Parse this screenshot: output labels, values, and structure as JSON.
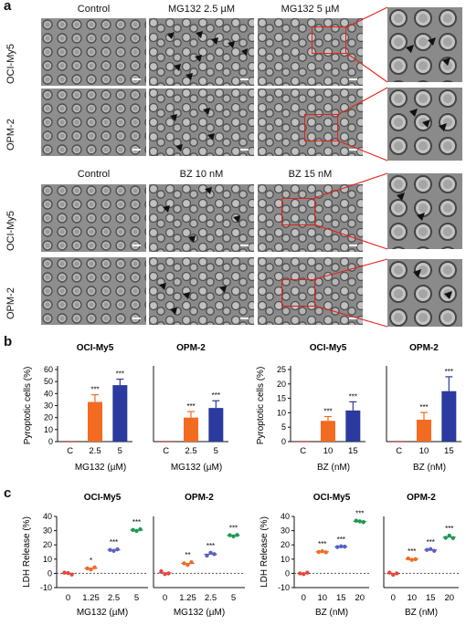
{
  "panel_labels": {
    "a": "a",
    "b": "b",
    "c": "c"
  },
  "panel_a": {
    "top_block": {
      "columns": [
        "Control",
        "MG132 2.5 µM",
        "MG132 5 µM"
      ],
      "rows": [
        "OCI-My5",
        "OPM-2"
      ]
    },
    "bottom_block": {
      "columns": [
        "Control",
        "BZ 10 nM",
        "BZ 15 nM"
      ],
      "rows": [
        "OCI-My5",
        "OPM-2"
      ]
    }
  },
  "colors": {
    "control": "#e8463c",
    "low": "#f26b21",
    "high": "#2b3a9e",
    "mid": "#5860c8",
    "top": "#1a9a4f",
    "zoom_box": "#e0231c"
  },
  "chart_data": [
    {
      "type": "bar",
      "panel": "b",
      "title": "OCI-My5",
      "ylabel": "Pyroptotic cells (%)",
      "xlabel": "MG132 (µM)",
      "categories": [
        "C",
        "2.5",
        "5"
      ],
      "values": [
        0,
        33,
        47
      ],
      "errors": [
        0,
        6,
        5
      ],
      "significance": [
        "",
        "***",
        "***"
      ],
      "ylim": [
        0,
        60
      ],
      "yticks": [
        0,
        10,
        20,
        30,
        40,
        50,
        60
      ]
    },
    {
      "type": "bar",
      "panel": "b",
      "title": "OPM-2",
      "ylabel": "",
      "xlabel": "MG132 (µM)",
      "categories": [
        "C",
        "2.5",
        "5"
      ],
      "values": [
        0,
        20,
        28
      ],
      "errors": [
        0,
        5,
        6
      ],
      "significance": [
        "",
        "***",
        "***"
      ],
      "ylim": [
        0,
        60
      ]
    },
    {
      "type": "bar",
      "panel": "b",
      "title": "OCI-My5",
      "ylabel": "Pyroptotic cells (%)",
      "xlabel": "BZ (nM)",
      "categories": [
        "C",
        "10",
        "15"
      ],
      "values": [
        0,
        7.2,
        10.8
      ],
      "errors": [
        0,
        1.5,
        3
      ],
      "significance": [
        "",
        "***",
        "***"
      ],
      "ylim": [
        0,
        25
      ],
      "yticks": [
        0,
        5,
        10,
        15,
        20,
        25
      ]
    },
    {
      "type": "bar",
      "panel": "b",
      "title": "OPM-2",
      "ylabel": "",
      "xlabel": "BZ (nM)",
      "categories": [
        "C",
        "10",
        "15"
      ],
      "values": [
        0,
        7.6,
        17.5
      ],
      "errors": [
        0,
        2.5,
        5
      ],
      "significance": [
        "",
        "***",
        "***"
      ],
      "ylim": [
        0,
        25
      ]
    },
    {
      "type": "scatter",
      "panel": "c",
      "title": "OCI-My5",
      "ylabel": "LDH Release (%)",
      "xlabel": "MG132 (µM)",
      "categories": [
        "0",
        "1.25",
        "2.5",
        "5"
      ],
      "points": [
        [
          0.5,
          0.2,
          -0.8
        ],
        [
          3.5,
          2.8,
          4.2
        ],
        [
          16.5,
          15.8,
          16.9
        ],
        [
          30.5,
          29.8,
          31.0
        ]
      ],
      "significance": [
        "",
        "*",
        "***",
        "***"
      ],
      "ylim": [
        -10,
        40
      ],
      "yticks": [
        -10,
        0,
        10,
        20,
        30,
        40
      ]
    },
    {
      "type": "scatter",
      "panel": "c",
      "title": "OPM-2",
      "ylabel": "",
      "xlabel": "MG132 (µM)",
      "categories": [
        "0",
        "1.25",
        "2.5",
        "5"
      ],
      "points": [
        [
          1.5,
          -0.5,
          0.0
        ],
        [
          7.0,
          6.0,
          7.8
        ],
        [
          12.5,
          14.5,
          13.5
        ],
        [
          26.8,
          26.0,
          27.0
        ]
      ],
      "significance": [
        "",
        "**",
        "***",
        "***"
      ],
      "ylim": [
        -10,
        40
      ]
    },
    {
      "type": "scatter",
      "panel": "c",
      "title": "OCI-My5",
      "ylabel": "LDH Release (%)",
      "xlabel": "BZ (nM)",
      "categories": [
        "0",
        "10",
        "15",
        "20"
      ],
      "points": [
        [
          0.0,
          -0.5,
          0.5
        ],
        [
          15.0,
          15.5,
          14.8
        ],
        [
          18.5,
          19.0,
          18.8
        ],
        [
          37.0,
          36.5,
          36.0
        ]
      ],
      "significance": [
        "",
        "***",
        "***",
        "***"
      ],
      "ylim": [
        -10,
        40
      ],
      "yticks": [
        -10,
        0,
        10,
        20,
        30,
        40
      ]
    },
    {
      "type": "scatter",
      "panel": "c",
      "title": "OPM-2",
      "ylabel": "",
      "xlabel": "BZ (nM)",
      "categories": [
        "0",
        "10",
        "15",
        "20"
      ],
      "points": [
        [
          0.5,
          -1.0,
          0.0
        ],
        [
          10.5,
          9.5,
          10.0
        ],
        [
          16.5,
          17.0,
          15.8
        ],
        [
          25.0,
          26.5,
          24.8
        ]
      ],
      "significance": [
        "",
        "***",
        "***",
        "***"
      ],
      "ylim": [
        -10,
        40
      ]
    }
  ]
}
